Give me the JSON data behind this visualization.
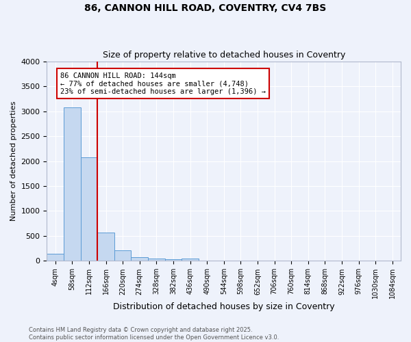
{
  "title": "86, CANNON HILL ROAD, COVENTRY, CV4 7BS",
  "subtitle": "Size of property relative to detached houses in Coventry",
  "xlabel": "Distribution of detached houses by size in Coventry",
  "ylabel": "Number of detached properties",
  "categories": [
    "4sqm",
    "58sqm",
    "112sqm",
    "166sqm",
    "220sqm",
    "274sqm",
    "328sqm",
    "382sqm",
    "436sqm",
    "490sqm",
    "544sqm",
    "598sqm",
    "652sqm",
    "706sqm",
    "760sqm",
    "814sqm",
    "868sqm",
    "922sqm",
    "976sqm",
    "1030sqm",
    "1084sqm"
  ],
  "values": [
    150,
    3080,
    2080,
    575,
    210,
    75,
    45,
    30,
    50,
    0,
    0,
    0,
    0,
    0,
    0,
    0,
    0,
    0,
    0,
    0,
    0
  ],
  "bar_color": "#c5d8f0",
  "bar_edge_color": "#5b9bd5",
  "vline_x_idx": 2.5,
  "vline_color": "#cc0000",
  "annotation_text": "86 CANNON HILL ROAD: 144sqm\n← 77% of detached houses are smaller (4,748)\n23% of semi-detached houses are larger (1,396) →",
  "annotation_box_color": "#cc0000",
  "ylim": [
    0,
    4000
  ],
  "yticks": [
    0,
    500,
    1000,
    1500,
    2000,
    2500,
    3000,
    3500,
    4000
  ],
  "footnote1": "Contains HM Land Registry data © Crown copyright and database right 2025.",
  "footnote2": "Contains public sector information licensed under the Open Government Licence v3.0.",
  "background_color": "#eef2fb",
  "plot_background": "#eef2fb",
  "grid_color": "#ffffff",
  "title_fontsize": 10,
  "subtitle_fontsize": 9
}
